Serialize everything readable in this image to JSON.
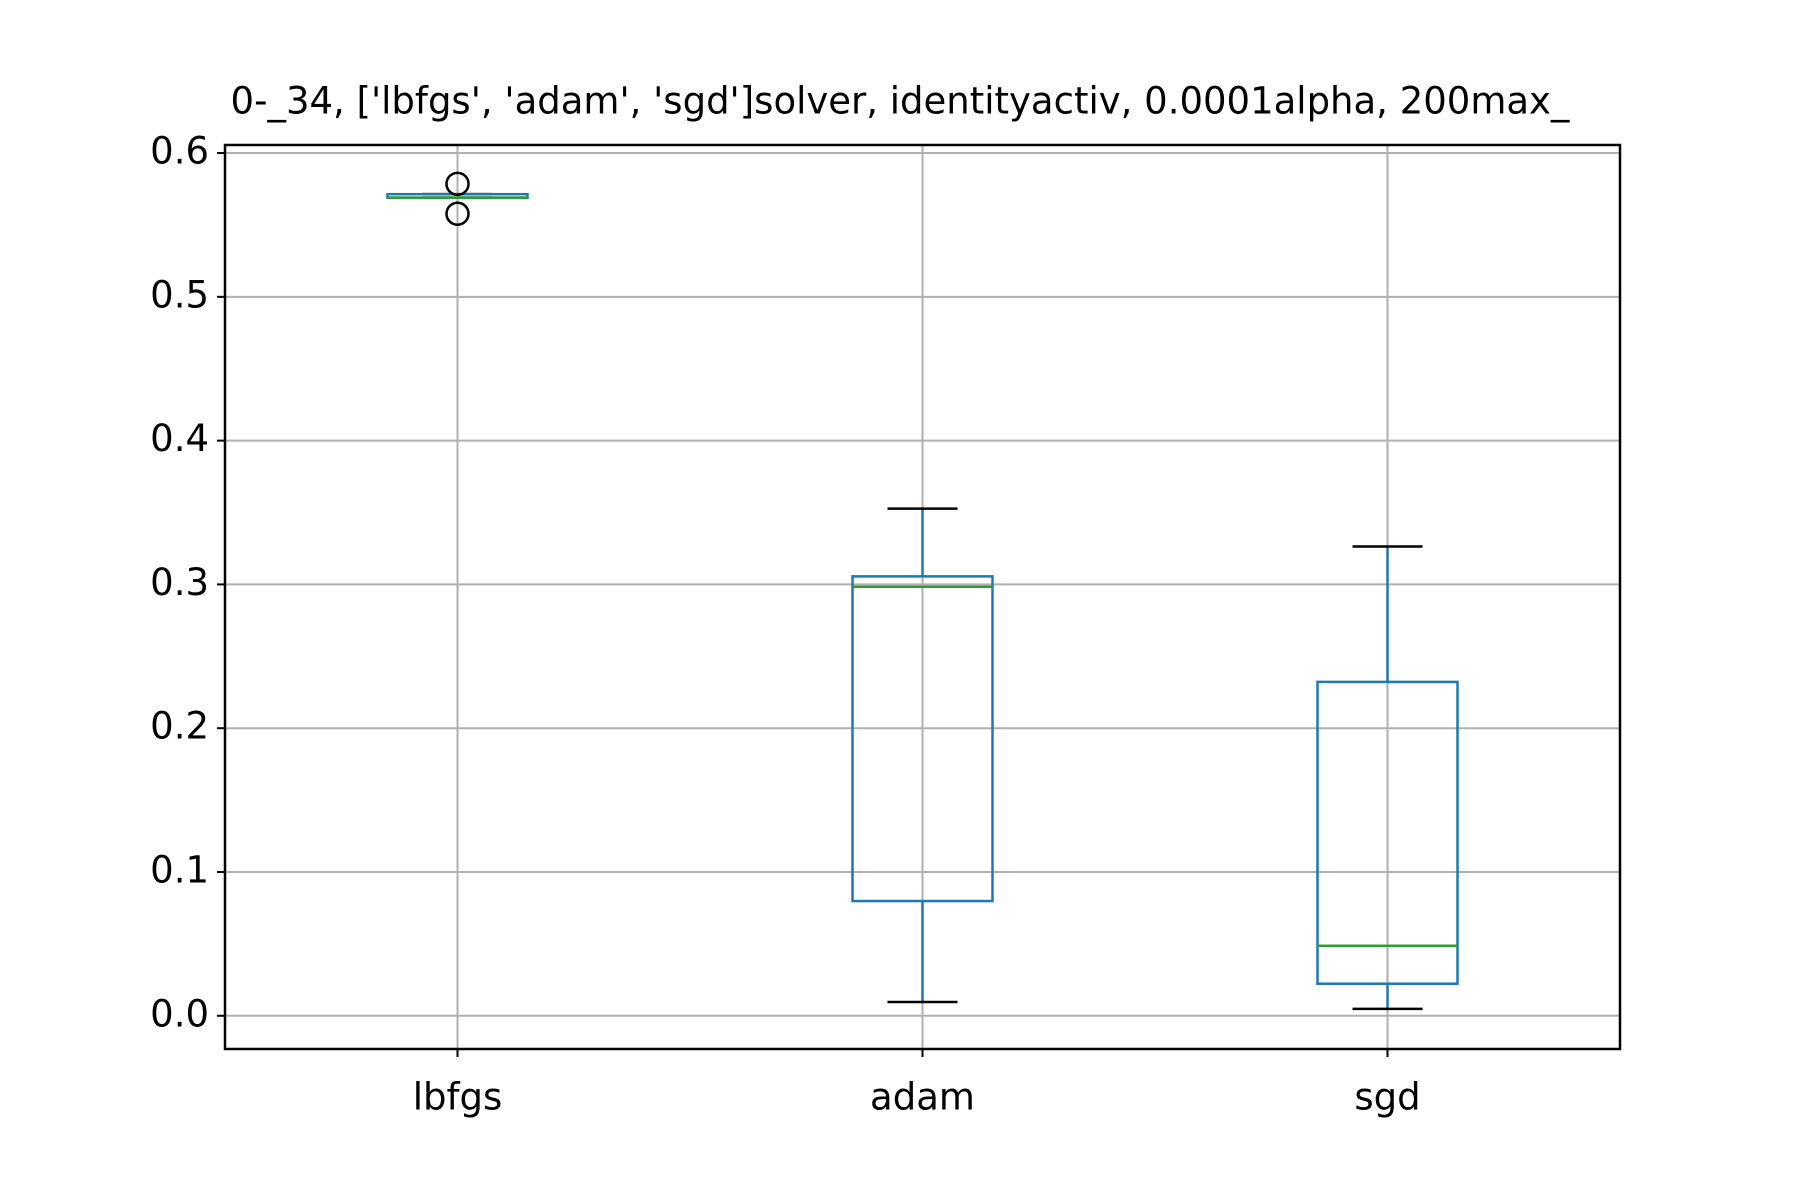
{
  "chart_data": {
    "type": "box",
    "title": "0-_34, ['lbfgs', 'adam', 'sgd']solver, identityactiv, 0.0001alpha, 200max_",
    "categories": [
      "lbfgs",
      "adam",
      "sgd"
    ],
    "boxes": [
      {
        "whislo": 0.569,
        "q1": 0.569,
        "median": 0.569,
        "q3": 0.5714,
        "whishi": 0.5714,
        "fliers": [
          0.5786,
          0.5578
        ]
      },
      {
        "whislo": 0.0096,
        "q1": 0.0798,
        "median": 0.2984,
        "q3": 0.3056,
        "whishi": 0.3527,
        "fliers": []
      },
      {
        "whislo": 0.0048,
        "q1": 0.0223,
        "median": 0.0487,
        "q3": 0.2322,
        "whishi": 0.3264,
        "fliers": []
      }
    ],
    "box_color": "#1f77b4",
    "median_color": "#2ca02c",
    "cap_color": "#000000",
    "ylim": [
      -0.0231,
      0.6056
    ],
    "yticks": [
      {
        "value": 0,
        "label": "0.0"
      },
      0.1,
      0.2,
      0.3,
      0.4,
      0.5,
      0.6
    ],
    "grid": true
  }
}
